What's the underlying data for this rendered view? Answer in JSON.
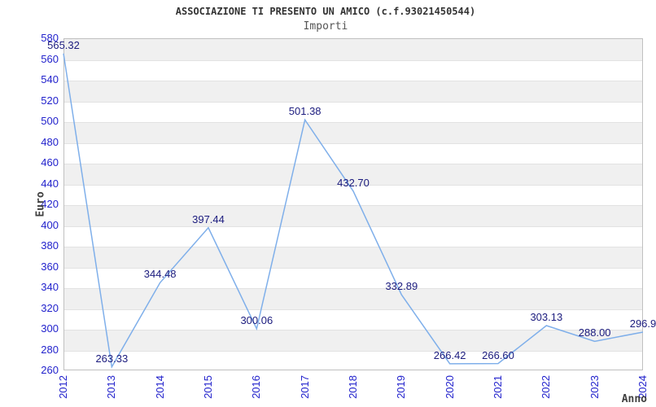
{
  "chart_data": {
    "type": "line",
    "title": "ASSOCIAZIONE TI PRESENTO UN AMICO (c.f.93021450544)",
    "subtitle": "Importi",
    "xlabel": "Anno",
    "ylabel": "Euro",
    "categories": [
      "2012",
      "2013",
      "2014",
      "2015",
      "2016",
      "2017",
      "2018",
      "2019",
      "2020",
      "2021",
      "2022",
      "2023",
      "2024"
    ],
    "series": [
      {
        "name": "Importi",
        "values": [
          565.32,
          263.33,
          344.48,
          397.44,
          300.06,
          501.38,
          432.7,
          332.89,
          266.42,
          266.6,
          303.13,
          288.0,
          296.9
        ]
      }
    ],
    "value_labels": [
      "565.32",
      "263.33",
      "344.48",
      "397.44",
      "300.06",
      "501.38",
      "432.70",
      "332.89",
      "266.42",
      "266.60",
      "303.13",
      "288.00",
      "296.9"
    ],
    "ylim": [
      260,
      580
    ],
    "ytick_step": 20,
    "grid": "horizontal-bands",
    "legend_position": "none",
    "colors": {
      "line": "#7fafea",
      "tick_label": "#2222cc",
      "data_label": "#1b1b7e",
      "title": "#333333",
      "subtitle": "#555555",
      "axis_title": "#404040",
      "band_gray": "#f0f0f0",
      "band_white": "#ffffff",
      "gridline": "#e2e2e2",
      "plot_border": "#c0c0c0"
    }
  }
}
